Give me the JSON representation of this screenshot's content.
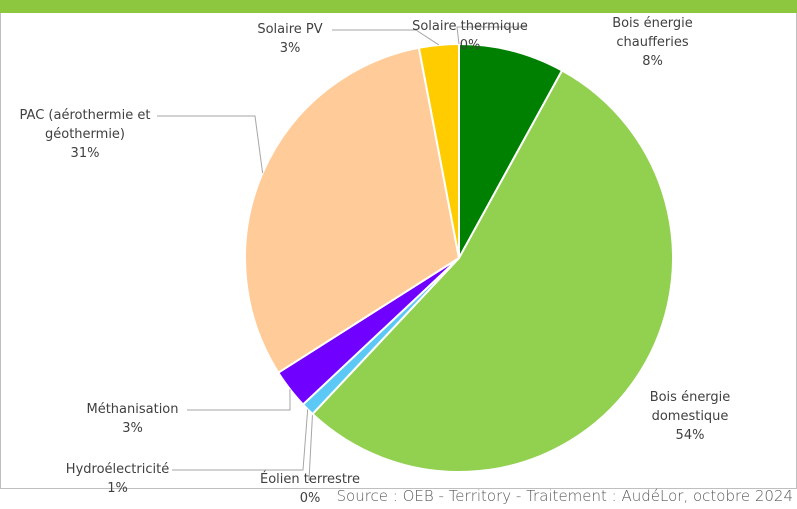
{
  "chart_data": {
    "type": "pie",
    "categories": [
      "Bois énergie chaufferies",
      "Bois énergie domestique",
      "Éolien terrestre",
      "Hydroélectricité",
      "Méthanisation",
      "PAC (aérothermie et géothermie)",
      "Solaire PV",
      "Solaire thermique"
    ],
    "values": [
      8,
      54,
      0,
      1,
      3,
      31,
      3,
      0
    ],
    "value_labels": [
      "8%",
      "54%",
      "0%",
      "1%",
      "3%",
      "31%",
      "3%",
      "0%"
    ],
    "colors": [
      "#008000",
      "#92d050",
      "#00b0f0",
      "#5bc8f5",
      "#7000ff",
      "#ffcc99",
      "#ffcc00",
      "#ff9900"
    ],
    "source": "Source : OEB - Territory - Traitement : AudéLor, octobre 2024"
  }
}
